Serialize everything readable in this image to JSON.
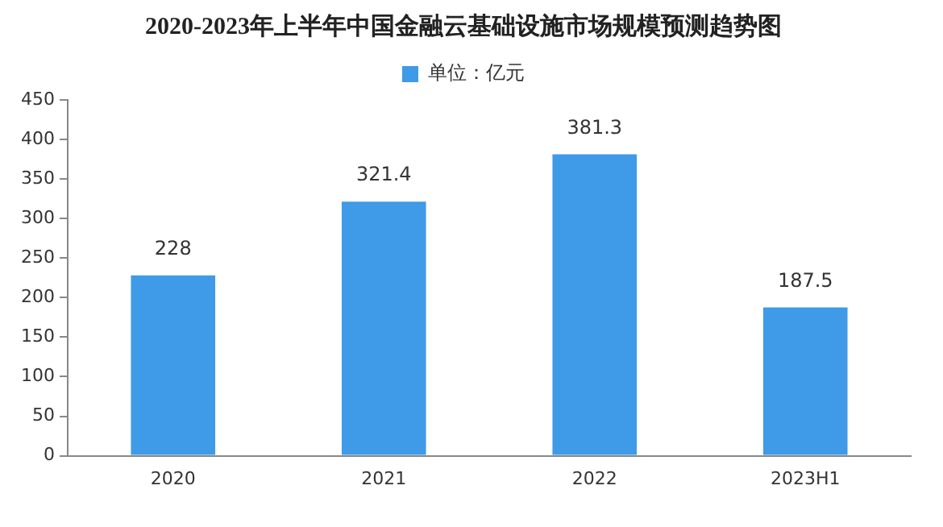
{
  "chart_data": {
    "type": "bar",
    "title": "2020-2023年上半年中国金融云基础设施市场规模预测趋势图",
    "categories": [
      "2020",
      "2021",
      "2022",
      "2023H1"
    ],
    "series": [
      {
        "name": "单位：亿元",
        "color": "#3f9ae8",
        "values": [
          228,
          321.4,
          381.3,
          187.5
        ]
      }
    ],
    "ylim": [
      0,
      450
    ],
    "yticks": [
      0,
      50,
      100,
      150,
      200,
      250,
      300,
      350,
      400,
      450
    ],
    "grid": false,
    "legend": "top",
    "data_labels": true
  }
}
